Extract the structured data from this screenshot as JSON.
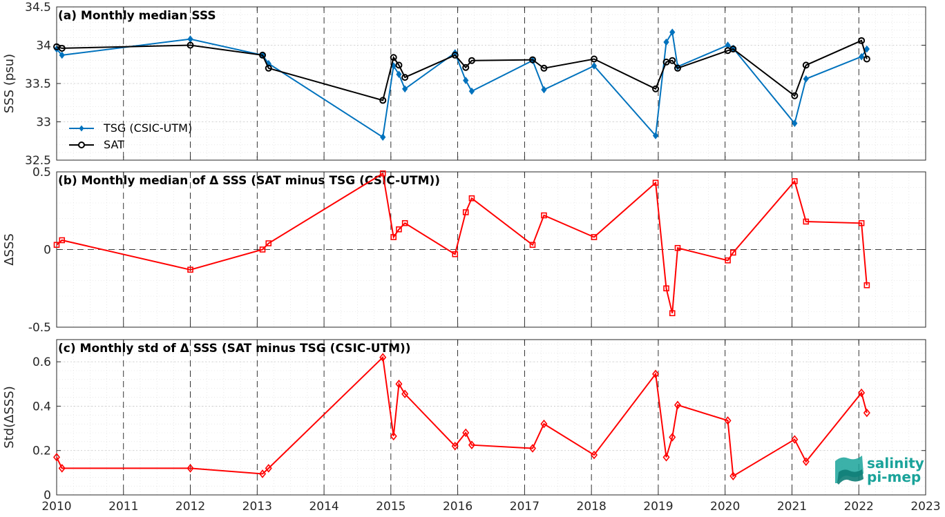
{
  "chart_data": [
    {
      "type": "line",
      "title": "(a) Monthly median SSS",
      "ylabel": "SSS (psu)",
      "xlim": [
        2010,
        2023
      ],
      "ylim": [
        32.5,
        34.5
      ],
      "yticks": [
        "32.5",
        "33",
        "33.5",
        "34",
        "34.5"
      ],
      "legend_position": "bottom-left",
      "grid": true,
      "series": [
        {
          "name": "TSG (CSIC-UTM)",
          "color": "#0072BD",
          "marker": "diamond-filled",
          "x": [
            2010.0,
            2010.08,
            2012.0,
            2013.08,
            2013.17,
            2014.88,
            2015.04,
            2015.12,
            2015.21,
            2015.96,
            2016.12,
            2016.21,
            2017.12,
            2017.29,
            2018.04,
            2018.96,
            2019.12,
            2019.21,
            2019.29,
            2020.04,
            2020.12,
            2021.04,
            2021.21,
            2022.04,
            2022.12
          ],
          "y": [
            33.95,
            33.87,
            34.08,
            33.87,
            33.76,
            32.8,
            33.73,
            33.62,
            33.43,
            33.9,
            33.54,
            33.4,
            33.8,
            33.42,
            33.73,
            32.82,
            34.04,
            34.17,
            33.72,
            34.0,
            33.96,
            32.98,
            33.56,
            33.85,
            33.95
          ]
        },
        {
          "name": "SAT",
          "color": "#000000",
          "marker": "circle-open",
          "x": [
            2010.0,
            2010.08,
            2012.0,
            2013.08,
            2013.17,
            2014.88,
            2015.04,
            2015.12,
            2015.21,
            2015.96,
            2016.12,
            2016.21,
            2017.12,
            2017.29,
            2018.04,
            2018.96,
            2019.12,
            2019.21,
            2019.29,
            2020.04,
            2020.12,
            2021.04,
            2021.21,
            2022.04,
            2022.12
          ],
          "y": [
            33.98,
            33.96,
            34.0,
            33.87,
            33.7,
            33.28,
            33.84,
            33.74,
            33.58,
            33.87,
            33.71,
            33.8,
            33.81,
            33.7,
            33.82,
            33.43,
            33.78,
            33.8,
            33.7,
            33.93,
            33.95,
            33.34,
            33.74,
            34.06,
            33.82
          ]
        }
      ]
    },
    {
      "type": "line",
      "title": "(b) Monthly median of Δ SSS (SAT minus TSG (CSIC-UTM))",
      "ylabel": "ΔSSS",
      "xlim": [
        2010,
        2023
      ],
      "ylim": [
        -0.5,
        0.5
      ],
      "yticks": [
        "-0.5",
        "0",
        "0.5"
      ],
      "zero_line": true,
      "grid": true,
      "series": [
        {
          "color": "#FF0000",
          "marker": "square-open",
          "x": [
            2010.0,
            2010.08,
            2012.0,
            2013.08,
            2013.17,
            2014.88,
            2015.04,
            2015.12,
            2015.21,
            2015.96,
            2016.12,
            2016.21,
            2017.12,
            2017.29,
            2018.04,
            2018.96,
            2019.12,
            2019.21,
            2019.29,
            2020.04,
            2020.12,
            2021.04,
            2021.21,
            2022.04,
            2022.12
          ],
          "y": [
            0.03,
            0.06,
            -0.13,
            0.0,
            0.04,
            0.49,
            0.08,
            0.13,
            0.17,
            -0.03,
            0.24,
            0.33,
            0.03,
            0.22,
            0.08,
            0.43,
            -0.25,
            -0.41,
            0.01,
            -0.07,
            -0.02,
            0.44,
            0.18,
            0.17,
            -0.23
          ]
        }
      ]
    },
    {
      "type": "line",
      "title": "(c) Monthly std of Δ SSS (SAT minus TSG (CSIC-UTM))",
      "ylabel": "Std(ΔSSS)",
      "xlim": [
        2010,
        2023
      ],
      "ylim": [
        0,
        0.7
      ],
      "yticks": [
        "0",
        "0.2",
        "0.4",
        "0.6"
      ],
      "xticks": [
        "2010",
        "2011",
        "2012",
        "2013",
        "2014",
        "2015",
        "2016",
        "2017",
        "2018",
        "2019",
        "2020",
        "2021",
        "2022",
        "2023"
      ],
      "grid": true,
      "series": [
        {
          "color": "#FF0000",
          "marker": "diamond-open",
          "x": [
            2010.0,
            2010.08,
            2012.0,
            2013.08,
            2013.17,
            2014.88,
            2015.04,
            2015.12,
            2015.21,
            2015.96,
            2016.12,
            2016.21,
            2017.12,
            2017.29,
            2018.04,
            2018.96,
            2019.12,
            2019.21,
            2019.29,
            2020.04,
            2020.12,
            2021.04,
            2021.21,
            2022.04,
            2022.12
          ],
          "y": [
            0.17,
            0.12,
            0.12,
            0.095,
            0.12,
            0.62,
            0.265,
            0.5,
            0.455,
            0.22,
            0.28,
            0.225,
            0.21,
            0.32,
            0.18,
            0.545,
            0.17,
            0.26,
            0.405,
            0.335,
            0.085,
            0.25,
            0.15,
            0.46,
            0.37
          ]
        }
      ]
    }
  ],
  "logo": {
    "line1": "salinity",
    "line2": "pi-mep",
    "color": "#1aa39a"
  }
}
